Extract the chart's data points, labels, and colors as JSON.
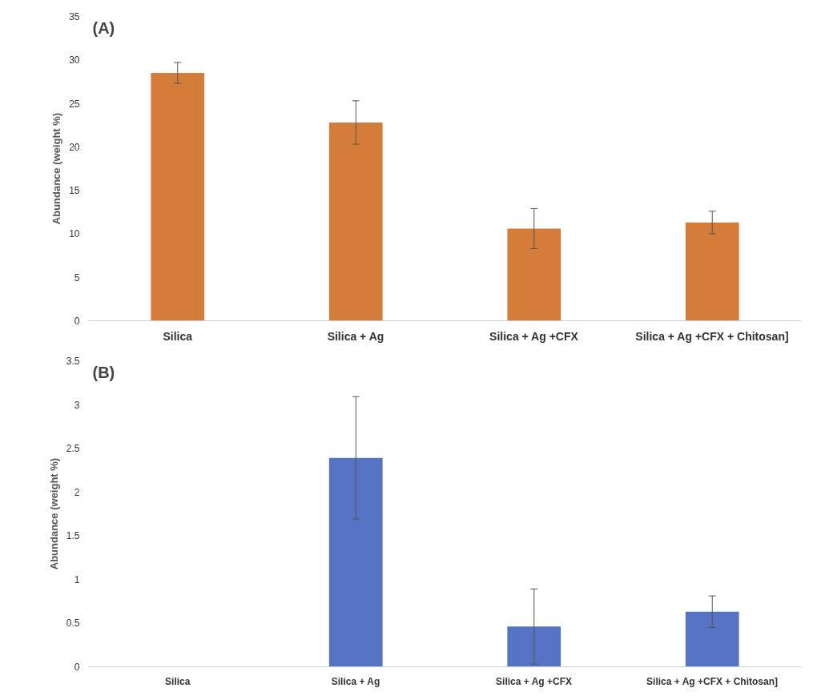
{
  "chart_data": [
    {
      "type": "bar",
      "ylabel": "Abundance (weight %)",
      "annotations": [
        "(A)"
      ],
      "categories": [
        "Silica",
        "Silica + Ag",
        "Silica + Ag +CFX",
        "Silica + Ag +CFX + Chitosan]"
      ],
      "series": [
        {
          "color": "#d47d3a",
          "values": [
            28.5,
            22.8,
            10.6,
            11.3
          ],
          "errors": [
            1.2,
            2.5,
            2.3,
            1.3
          ]
        }
      ],
      "ylim": [
        0,
        35
      ],
      "yticks": [
        0,
        5,
        10,
        15,
        20,
        25,
        30,
        35
      ],
      "grid": false
    },
    {
      "type": "bar",
      "ylabel": "Abundance (weight %)",
      "annotations": [
        "(B)"
      ],
      "categories": [
        "Silica",
        "Silica + Ag",
        "Silica + Ag +CFX",
        "Silica + Ag +CFX + Chitosan]"
      ],
      "series": [
        {
          "color": "#5673c4",
          "values": [
            0,
            2.39,
            0.46,
            0.63
          ],
          "errors": [
            null,
            0.7,
            0.43,
            0.18
          ]
        }
      ],
      "ylim": [
        0,
        3.5
      ],
      "yticks": [
        0,
        0.5,
        1,
        1.5,
        2,
        2.5,
        3,
        3.5
      ],
      "grid": false
    }
  ]
}
